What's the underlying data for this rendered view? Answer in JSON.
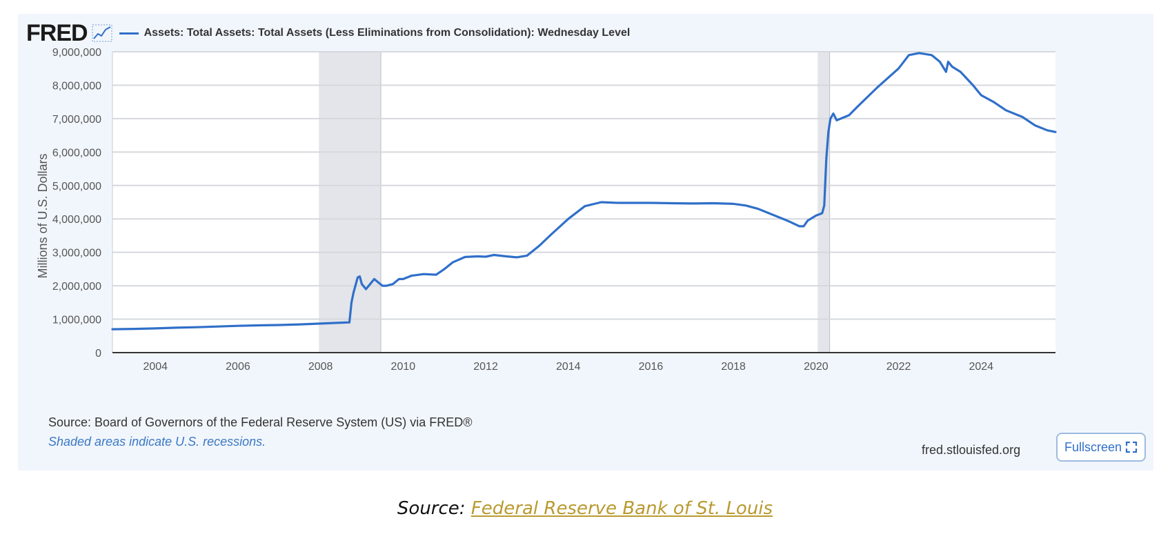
{
  "header": {
    "logo_text": "FRED",
    "logo_icon": "line-graph-icon"
  },
  "chart_data": {
    "type": "line",
    "title": "",
    "series": [
      {
        "name": "Assets: Total Assets: Total Assets (Less Eliminations from Consolidation): Wednesday Level",
        "color": "#2f6fc9",
        "x": [
          2002.96,
          2003.5,
          2004.0,
          2004.5,
          2005.0,
          2005.5,
          2006.0,
          2006.5,
          2007.0,
          2007.5,
          2008.0,
          2008.3,
          2008.6,
          2008.7,
          2008.75,
          2008.8,
          2008.9,
          2008.95,
          2009.0,
          2009.1,
          2009.2,
          2009.3,
          2009.4,
          2009.5,
          2009.6,
          2009.75,
          2009.9,
          2010.0,
          2010.2,
          2010.5,
          2010.8,
          2011.0,
          2011.2,
          2011.5,
          2011.8,
          2012.0,
          2012.2,
          2012.5,
          2012.75,
          2013.0,
          2013.3,
          2013.6,
          2014.0,
          2014.4,
          2014.8,
          2015.2,
          2015.6,
          2016.0,
          2016.5,
          2017.0,
          2017.5,
          2018.0,
          2018.3,
          2018.6,
          2019.0,
          2019.3,
          2019.6,
          2019.7,
          2019.8,
          2020.0,
          2020.15,
          2020.2,
          2020.25,
          2020.3,
          2020.35,
          2020.42,
          2020.5,
          2020.6,
          2020.8,
          2021.0,
          2021.5,
          2022.0,
          2022.25,
          2022.5,
          2022.8,
          2023.0,
          2023.15,
          2023.2,
          2023.3,
          2023.5,
          2023.8,
          2024.0,
          2024.3,
          2024.6,
          2025.0,
          2025.3,
          2025.6,
          2025.8
        ],
        "values": [
          700000,
          710000,
          725000,
          745000,
          760000,
          780000,
          800000,
          815000,
          825000,
          845000,
          870000,
          885000,
          900000,
          905000,
          1500000,
          1800000,
          2250000,
          2280000,
          2050000,
          1900000,
          2050000,
          2200000,
          2100000,
          2000000,
          2000000,
          2050000,
          2200000,
          2200000,
          2300000,
          2350000,
          2330000,
          2500000,
          2700000,
          2860000,
          2880000,
          2870000,
          2920000,
          2880000,
          2850000,
          2900000,
          3200000,
          3550000,
          4000000,
          4380000,
          4500000,
          4480000,
          4480000,
          4480000,
          4470000,
          4460000,
          4470000,
          4450000,
          4400000,
          4300000,
          4100000,
          3950000,
          3780000,
          3780000,
          3950000,
          4100000,
          4170000,
          4400000,
          5800000,
          6600000,
          7000000,
          7150000,
          6950000,
          7000000,
          7100000,
          7350000,
          7950000,
          8500000,
          8900000,
          8960000,
          8900000,
          8700000,
          8400000,
          8700000,
          8550000,
          8400000,
          8000000,
          7700000,
          7500000,
          7250000,
          7050000,
          6800000,
          6650000,
          6600000
        ]
      }
    ],
    "recessions": [
      [
        2007.96,
        2009.46
      ],
      [
        2020.04,
        2020.33
      ]
    ],
    "xlim": [
      2002.96,
      2025.8
    ],
    "ylim": [
      0,
      9000000
    ],
    "x_ticks": [
      2004,
      2006,
      2008,
      2010,
      2012,
      2014,
      2016,
      2018,
      2020,
      2022,
      2024
    ],
    "x_tick_labels": [
      "2004",
      "2006",
      "2008",
      "2010",
      "2012",
      "2014",
      "2016",
      "2018",
      "2020",
      "2022",
      "2024"
    ],
    "y_ticks": [
      0,
      1000000,
      2000000,
      3000000,
      4000000,
      5000000,
      6000000,
      7000000,
      8000000,
      9000000
    ],
    "y_tick_labels": [
      "0",
      "1,000,000",
      "2,000,000",
      "3,000,000",
      "4,000,000",
      "5,000,000",
      "6,000,000",
      "7,000,000",
      "8,000,000",
      "9,000,000"
    ],
    "ylabel": "Millions of U.S. Dollars",
    "xlabel": "",
    "grid": "horizontal",
    "legend_position": "top-left"
  },
  "footer": {
    "source": "Source: Board of Governors of the Federal Reserve System (US) via FRED®",
    "recession_note": "Shaded areas indicate U.S. recessions.",
    "url": "fred.stlouisfed.org",
    "fullscreen_label": "Fullscreen",
    "fullscreen_icon": "expand-icon"
  },
  "caption": {
    "prefix": "Source: ",
    "link_text": "Federal Reserve Bank of St. Louis"
  },
  "colors": {
    "line": "#2f6fc9",
    "panel_background": "#f1f6fc",
    "recession_shade": "#e3e5ea",
    "gridline": "#d6d8dd",
    "caption_link": "#b99a2f"
  }
}
